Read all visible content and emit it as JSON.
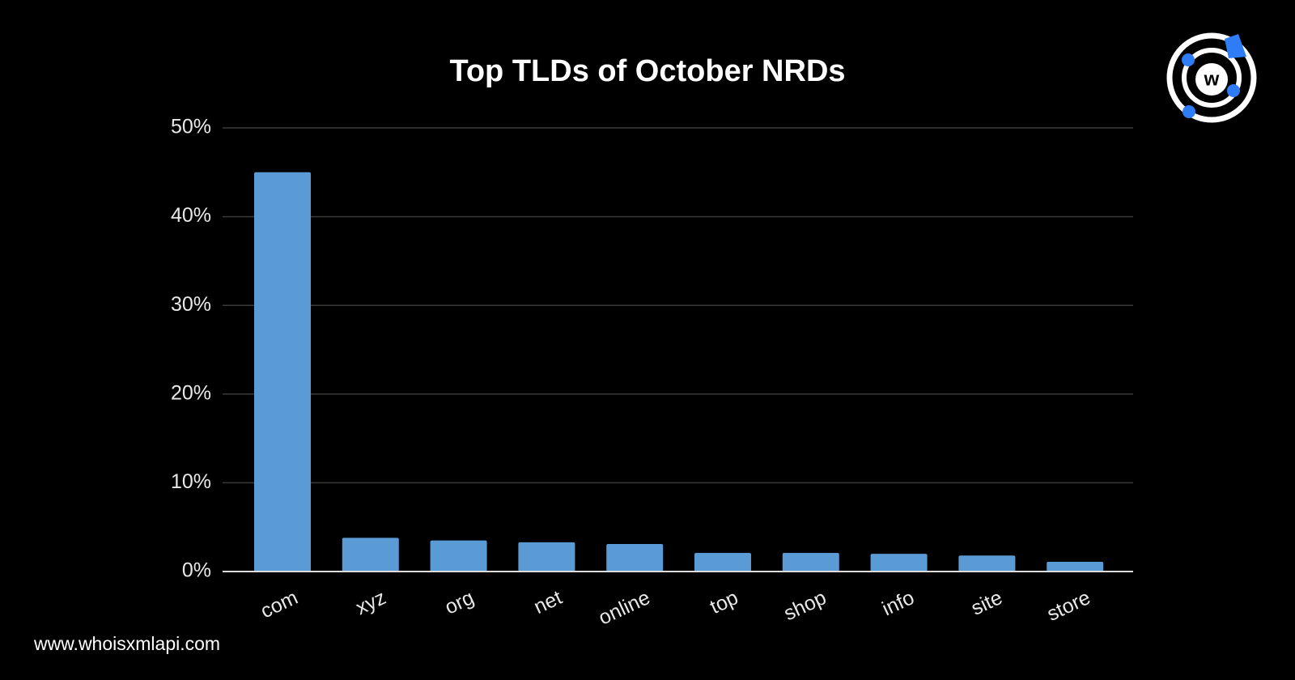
{
  "chart_data": {
    "type": "bar",
    "title": "Top TLDs of October NRDs",
    "categories": [
      "com",
      "xyz",
      "org",
      "net",
      "online",
      "top",
      "shop",
      "info",
      "site",
      "store"
    ],
    "values": [
      45,
      3.8,
      3.5,
      3.3,
      3.1,
      2.1,
      2.1,
      2.0,
      1.8,
      1.1
    ],
    "color": "#5b9bd5",
    "ylim": [
      0,
      50
    ],
    "yticks": [
      {
        "value": 0,
        "label": "0%"
      },
      {
        "value": 10,
        "label": "10%"
      },
      {
        "value": 20,
        "label": "20%"
      },
      {
        "value": 30,
        "label": "30%"
      },
      {
        "value": 40,
        "label": "40%"
      },
      {
        "value": 50,
        "label": "50%"
      }
    ],
    "grid": true
  },
  "footer": "www.whoisxmlapi.com"
}
